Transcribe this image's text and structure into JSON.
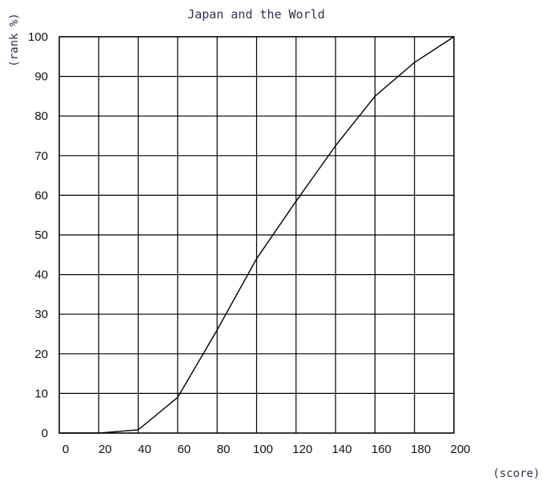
{
  "chart_data": {
    "type": "line",
    "title": "Japan and the World",
    "xlabel": "(score)",
    "ylabel": "(rank %)",
    "xlim": [
      0,
      200
    ],
    "ylim": [
      0,
      100
    ],
    "xticks": [
      0,
      20,
      40,
      60,
      80,
      100,
      120,
      140,
      160,
      180,
      200
    ],
    "yticks": [
      0,
      10,
      20,
      30,
      40,
      50,
      60,
      70,
      80,
      90,
      100
    ],
    "grid": true,
    "series": [
      {
        "x": [
          0,
          20,
          40,
          60,
          80,
          100,
          120,
          140,
          160,
          180,
          200
        ],
        "y": [
          0,
          0,
          0.8,
          9,
          26,
          44,
          58.5,
          72.5,
          85,
          93.5,
          100
        ]
      }
    ]
  }
}
